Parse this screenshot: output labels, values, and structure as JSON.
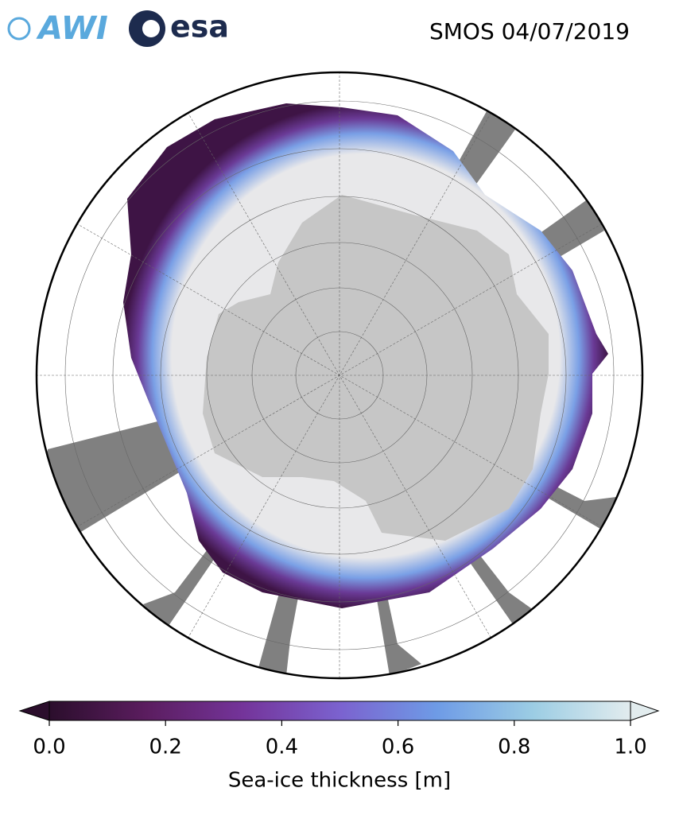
{
  "header": {
    "logos": [
      "AWI",
      "esa"
    ],
    "title": "SMOS 04/07/2019"
  },
  "colorbar": {
    "label": "Sea-ice thickness [m]",
    "lim": [
      0,
      1
    ],
    "ticks": [
      {
        "value": 0,
        "label": "0.0"
      },
      0.2,
      0.4,
      0.6,
      0.8,
      {
        "value": 1,
        "label": "1.0"
      }
    ],
    "colors": [
      "#2b0e2c",
      "#5b1d5f",
      "#74349a",
      "#7b62cf",
      "#6e9be6",
      "#9ccde4",
      "#e2ecee"
    ]
  }
}
